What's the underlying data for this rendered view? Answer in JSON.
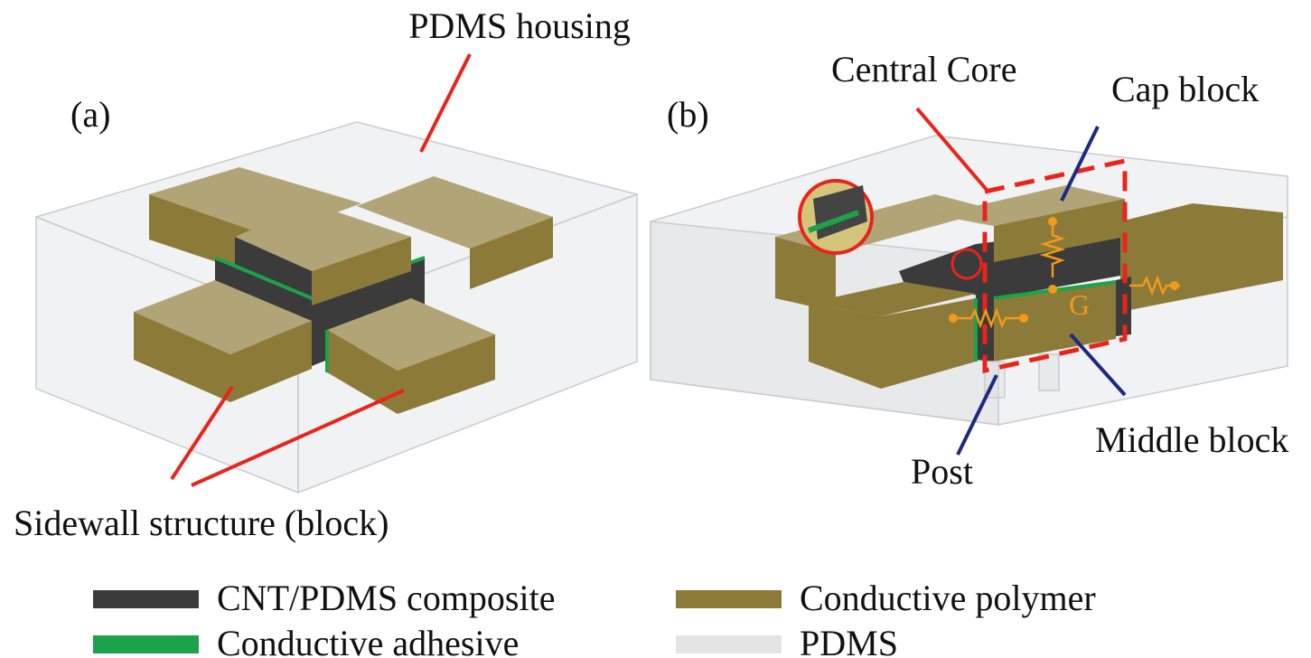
{
  "panels": [
    {
      "label": "(a)",
      "annotations": [
        "PDMS housing",
        "Sidewall structure (block)"
      ]
    },
    {
      "label": "(b)",
      "annotations": [
        "Central Core",
        "Cap block",
        "Middle block",
        "Post"
      ],
      "symbol": "G"
    }
  ],
  "legend": [
    {
      "label": "CNT/PDMS composite",
      "color": "#3b3b3b"
    },
    {
      "label": "Conductive adhesive",
      "color": "#1aa34a"
    },
    {
      "label": "Conductive polymer",
      "color": "#8c7b38"
    },
    {
      "label": "PDMS",
      "color": "#e4e4e4"
    }
  ]
}
